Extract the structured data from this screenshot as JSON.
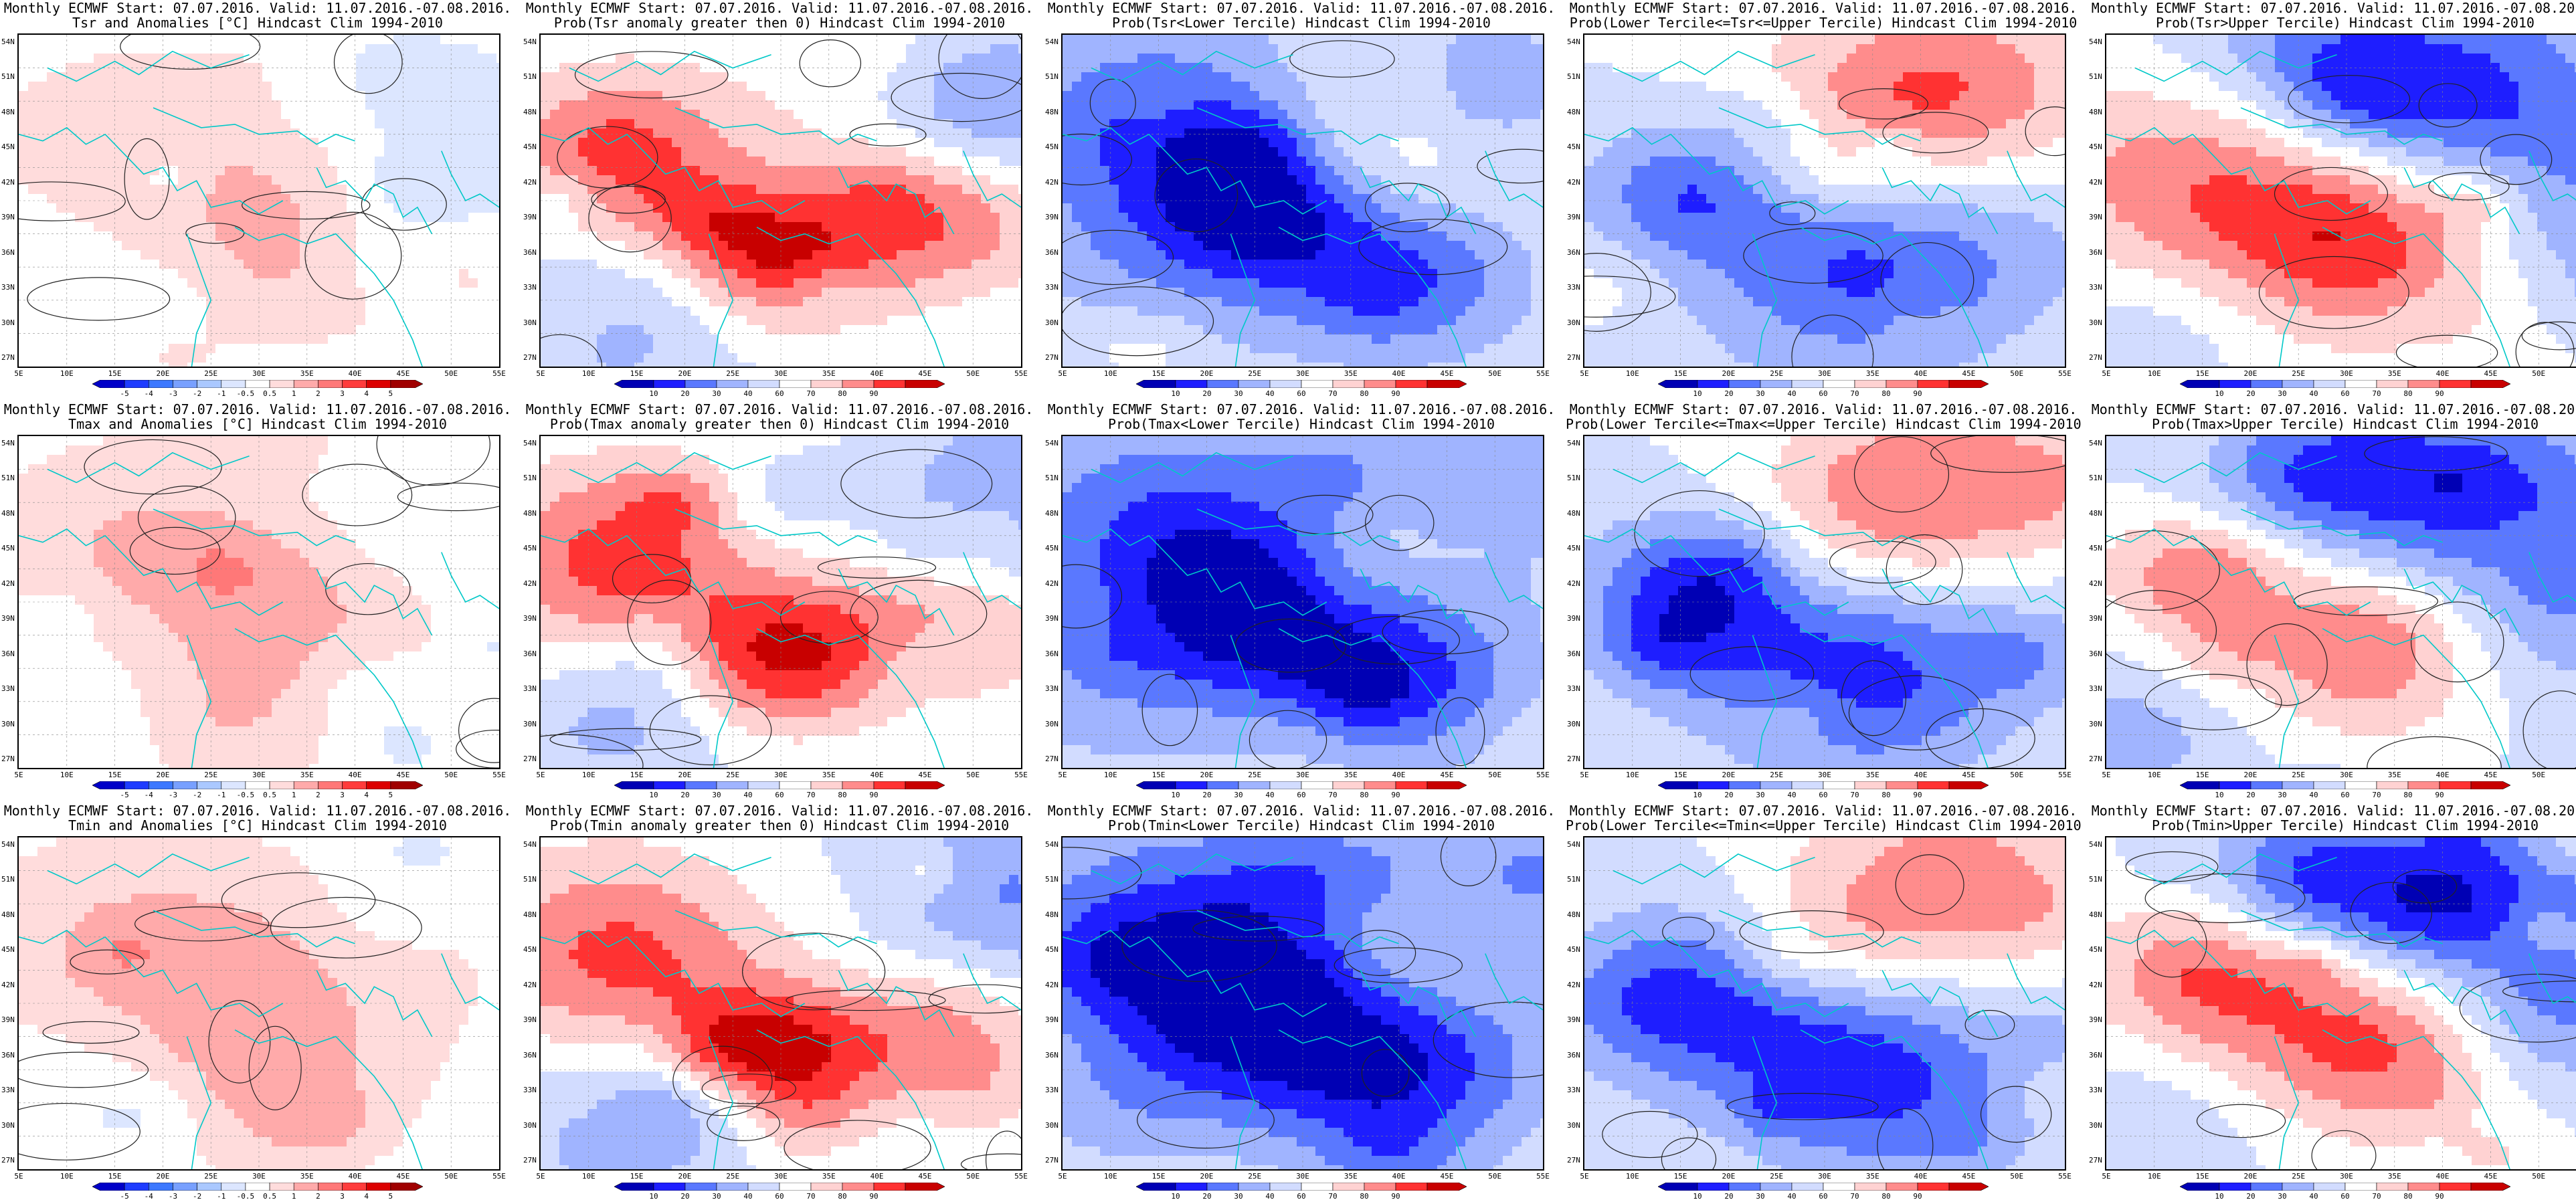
{
  "header": {
    "prefix": "Monthly ECMWF Start: 07.07.2016. Valid: 11.07.2016.-07.08.2016."
  },
  "axes": {
    "lat_labels": [
      "54N",
      "51N",
      "48N",
      "45N",
      "42N",
      "39N",
      "36N",
      "33N",
      "30N",
      "27N"
    ],
    "lon_labels": [
      "5E",
      "10E",
      "15E",
      "20E",
      "25E",
      "30E",
      "35E",
      "40E",
      "45E",
      "50E",
      "55E"
    ]
  },
  "colorbars": {
    "anomaly": {
      "ticks": [
        "-5",
        "-4",
        "-3",
        "-2",
        "-1",
        "-0.5",
        "0.5",
        "1",
        "2",
        "3",
        "4",
        "5"
      ],
      "colors": [
        "#0000c8",
        "#1e3cff",
        "#3c78ff",
        "#78a0ff",
        "#aac8ff",
        "#dce6ff",
        "#ffffff",
        "#ffdcdc",
        "#ffaaaa",
        "#ff7878",
        "#ff3c3c",
        "#dc0000",
        "#a00000"
      ]
    },
    "probability": {
      "ticks": [
        "10",
        "20",
        "30",
        "40",
        "60",
        "70",
        "80",
        "90"
      ],
      "colors": [
        "#0000b4",
        "#1e1eff",
        "#5a78ff",
        "#a0b4ff",
        "#d2dcff",
        "#ffffff",
        "#ffd2d2",
        "#ff8c8c",
        "#ff3232",
        "#c80000"
      ]
    }
  },
  "panels": [
    [
      {
        "line2": "Tsr and Anomalies [°C] Hindcast Clim 1994-2010",
        "bar": "anomaly",
        "style": "anom",
        "seed": 1
      },
      {
        "line2": "Prob(Tsr anomaly greater then 0) Hindcast Clim 1994-2010",
        "bar": "probability",
        "style": "warm",
        "seed": 2
      },
      {
        "line2": "Prob(Tsr<Lower Tercile) Hindcast Clim 1994-2010",
        "bar": "probability",
        "style": "cold",
        "seed": 3
      },
      {
        "line2": "Prob(Lower Tercile<=Tsr<=Upper Tercile) Hindcast Clim 1994-2010",
        "bar": "probability",
        "style": "mixed",
        "seed": 4
      },
      {
        "line2": "Prob(Tsr>Upper Tercile) Hindcast Clim 1994-2010",
        "bar": "probability",
        "style": "upper",
        "seed": 5
      }
    ],
    [
      {
        "line2": "Tmax and Anomalies [°C] Hindcast Clim 1994-2010",
        "bar": "anomaly",
        "style": "anom",
        "seed": 6
      },
      {
        "line2": "Prob(Tmax anomaly greater then 0) Hindcast Clim 1994-2010",
        "bar": "probability",
        "style": "warm",
        "seed": 7
      },
      {
        "line2": "Prob(Tmax<Lower Tercile) Hindcast Clim 1994-2010",
        "bar": "probability",
        "style": "cold",
        "seed": 8
      },
      {
        "line2": "Prob(Lower Tercile<=Tmax<=Upper Tercile) Hindcast Clim 1994-2010",
        "bar": "probability",
        "style": "mixed",
        "seed": 9
      },
      {
        "line2": "Prob(Tmax>Upper Tercile) Hindcast Clim 1994-2010",
        "bar": "probability",
        "style": "upper",
        "seed": 10
      }
    ],
    [
      {
        "line2": "Tmin and Anomalies [°C] Hindcast Clim 1994-2010",
        "bar": "anomaly",
        "style": "anom",
        "seed": 11
      },
      {
        "line2": "Prob(Tmin anomaly greater then 0) Hindcast Clim 1994-2010",
        "bar": "probability",
        "style": "warm",
        "seed": 12
      },
      {
        "line2": "Prob(Tmin<Lower Tercile) Hindcast Clim 1994-2010",
        "bar": "probability",
        "style": "cold",
        "seed": 13
      },
      {
        "line2": "Prob(Lower Tercile<=Tmin<=Upper Tercile) Hindcast Clim 1994-2010",
        "bar": "probability",
        "style": "mixed",
        "seed": 14
      },
      {
        "line2": "Prob(Tmin>Upper Tercile) Hindcast Clim 1994-2010",
        "bar": "probability",
        "style": "upper",
        "seed": 15
      }
    ]
  ]
}
